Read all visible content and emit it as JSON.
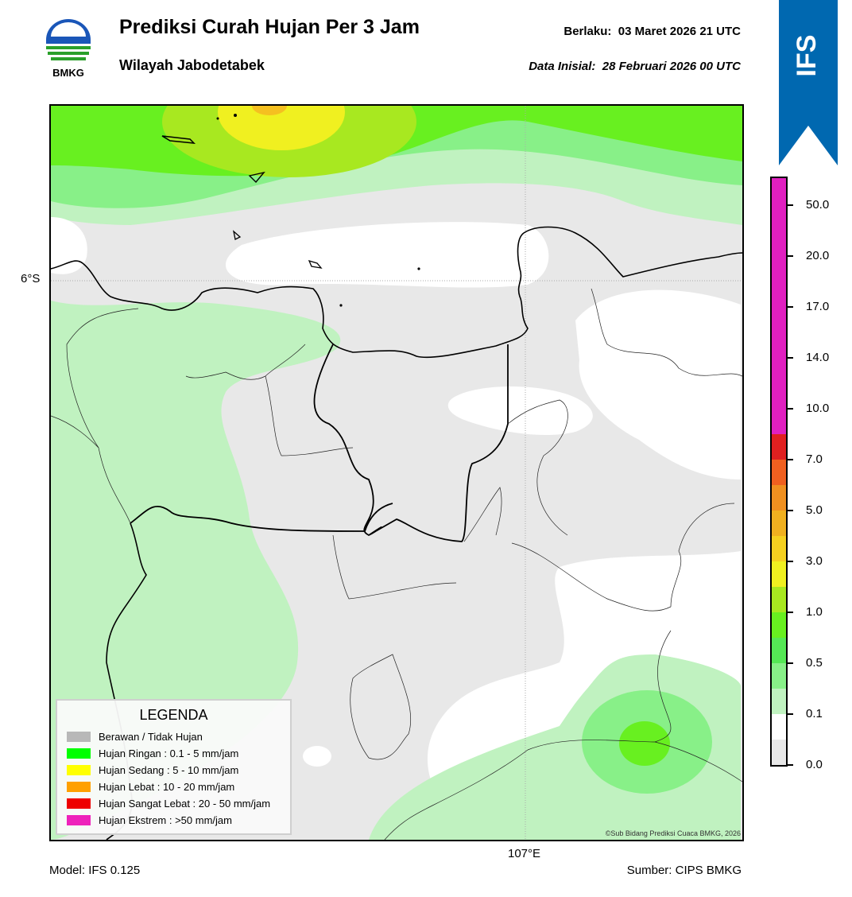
{
  "header": {
    "title": "Prediksi Curah Hujan Per 3 Jam",
    "subtitle": "Wilayah Jabodetabek",
    "valid_label": "Berlaku:",
    "valid_value": "03 Maret 2026 21 UTC",
    "init_label": "Data Inisial:",
    "init_value": "28 Februari 2026 00 UTC"
  },
  "logo": {
    "text": "BMKG",
    "icon": "bmkg-logo-icon"
  },
  "badge": {
    "text": "IFS",
    "color": "#0068b0"
  },
  "map": {
    "lat_label": "6°S",
    "lon_label": "107°E",
    "credit": "©Sub Bidang Prediksi Cuaca BMKG, 2026"
  },
  "legend": {
    "title": "LEGENDA",
    "items": [
      {
        "label": "Berawan / Tidak Hujan",
        "color": "#b8b8b8"
      },
      {
        "label": "Hujan Ringan : 0.1 - 5 mm/jam",
        "color": "#00ff00"
      },
      {
        "label": "Hujan Sedang : 5 - 10 mm/jam",
        "color": "#ffff00"
      },
      {
        "label": "Hujan Lebat : 10 - 20 mm/jam",
        "color": "#ffa000"
      },
      {
        "label": "Hujan Sangat Lebat : 20 - 50 mm/jam",
        "color": "#ee0000"
      },
      {
        "label": "Hujan Ekstrem : >50 mm/jam",
        "color": "#ee22bb"
      }
    ]
  },
  "colorbar": {
    "ticks": [
      "0.0",
      "0.1",
      "0.5",
      "1.0",
      "3.0",
      "5.0",
      "7.0",
      "10.0",
      "14.0",
      "17.0",
      "20.0",
      "50.0"
    ],
    "colors": [
      "#e8e8e8",
      "#ffffff",
      "#c0f2c0",
      "#88f088",
      "#55e855",
      "#68f020",
      "#a8e820",
      "#f0f020",
      "#f5d020",
      "#f0b020",
      "#f09020",
      "#f06020",
      "#e02020",
      "#e020c0"
    ]
  },
  "footer": {
    "model": "Model: IFS 0.125",
    "source": "Sumber: CIPS BMKG"
  }
}
